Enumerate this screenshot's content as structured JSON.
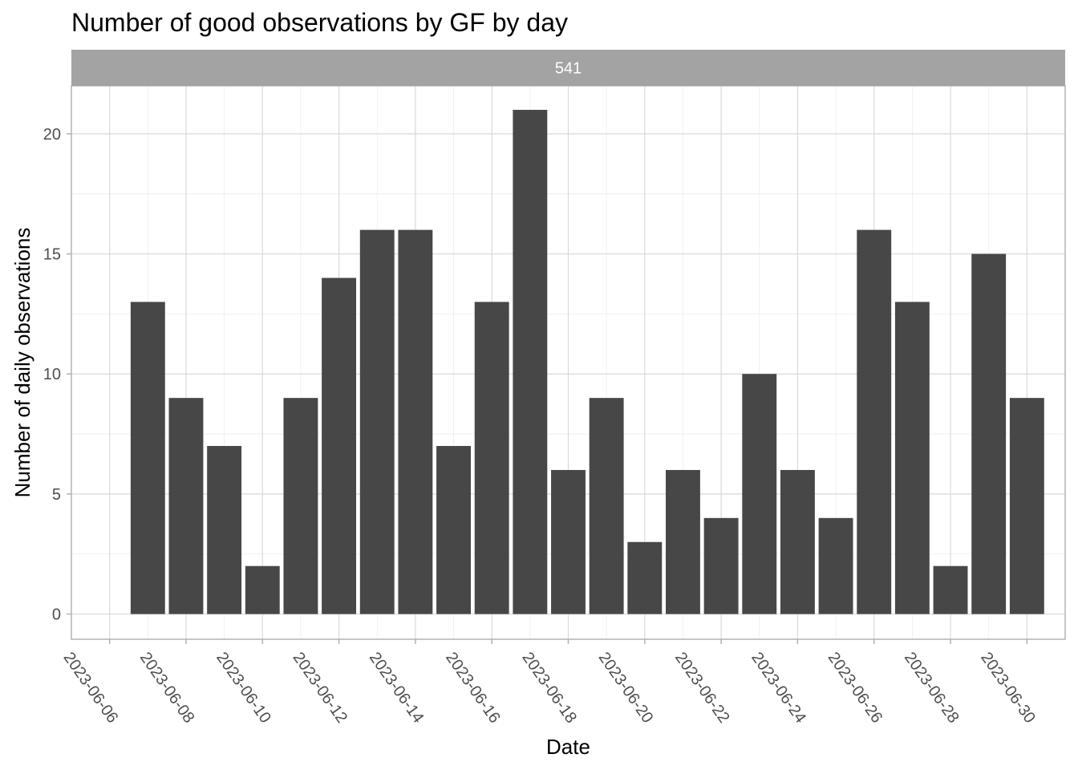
{
  "chart_data": {
    "type": "bar",
    "title": "Number of good observations by GF by day",
    "facet_label": "541",
    "xlabel": "Date",
    "ylabel": "Number of daily observations",
    "x": [
      "2023-06-07",
      "2023-06-08",
      "2023-06-09",
      "2023-06-10",
      "2023-06-11",
      "2023-06-12",
      "2023-06-13",
      "2023-06-14",
      "2023-06-15",
      "2023-06-16",
      "2023-06-17",
      "2023-06-18",
      "2023-06-19",
      "2023-06-20",
      "2023-06-21",
      "2023-06-22",
      "2023-06-23",
      "2023-06-24",
      "2023-06-25",
      "2023-06-26",
      "2023-06-27",
      "2023-06-28",
      "2023-06-29",
      "2023-06-30"
    ],
    "values": [
      13,
      9,
      7,
      2,
      9,
      14,
      16,
      16,
      7,
      13,
      21,
      6,
      9,
      3,
      6,
      4,
      10,
      6,
      4,
      16,
      13,
      2,
      15,
      9
    ],
    "x_ticks": [
      "2023-06-06",
      "2023-06-08",
      "2023-06-10",
      "2023-06-12",
      "2023-06-14",
      "2023-06-16",
      "2023-06-18",
      "2023-06-20",
      "2023-06-22",
      "2023-06-24",
      "2023-06-26",
      "2023-06-28",
      "2023-06-30"
    ],
    "y_ticks": [
      0,
      5,
      10,
      15,
      20
    ],
    "xlim": [
      "2023-06-05",
      "2023-07-01"
    ],
    "ylim": [
      -1.05,
      22
    ],
    "grid": true,
    "colors": {
      "bar": "#474747",
      "strip": "#a3a3a3",
      "grid_major": "#d9d9d9",
      "grid_minor": "#ececec",
      "panel_border": "#b3b3b3",
      "tick_text": "#4d4d4d"
    }
  }
}
